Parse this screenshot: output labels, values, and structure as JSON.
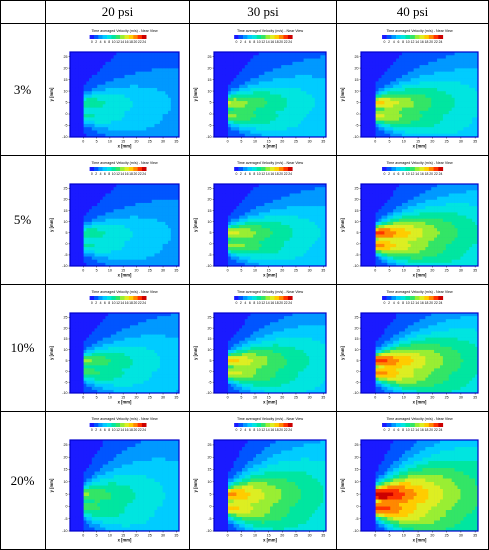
{
  "header": {
    "columns": [
      "20 psi",
      "30 psi",
      "40 psi"
    ]
  },
  "rows": [
    "3%",
    "5%",
    "10%",
    "20%"
  ],
  "panel_text": {
    "title": "Time averaged Velocity (m/s) - Near View",
    "xlabel": "x [mm]",
    "ylabel": "y [mm]"
  },
  "colorbar": {
    "ticks": [
      "0",
      "2",
      "4",
      "6",
      "8",
      "10",
      "12",
      "14",
      "16",
      "18",
      "20",
      "22",
      "24"
    ],
    "colors": [
      "#1a1aff",
      "#0055ff",
      "#0099ff",
      "#00ccff",
      "#00e5e0",
      "#00e6a0",
      "#33e566",
      "#99ee33",
      "#ddee22",
      "#ffcc00",
      "#ff8800",
      "#ff3300",
      "#cc0000"
    ]
  },
  "axes": {
    "xticks": [
      "0",
      "5",
      "10",
      "15",
      "20",
      "25",
      "30",
      "35"
    ],
    "yticks": [
      "25",
      "20",
      "15",
      "10",
      "5",
      "0",
      "-5",
      "-10"
    ]
  },
  "chart_data": {
    "type": "heatmap",
    "rows": [
      "3%",
      "5%",
      "10%",
      "20%"
    ],
    "columns": [
      "20 psi",
      "30 psi",
      "40 psi"
    ],
    "xlim": [
      -5,
      36
    ],
    "ylim": [
      -10,
      27
    ],
    "value_range": [
      0,
      24
    ],
    "panels": [
      {
        "row": "3%",
        "column": "20 psi",
        "jet_peak": 6,
        "spread": 1.0
      },
      {
        "row": "3%",
        "column": "30 psi",
        "jet_peak": 10,
        "spread": 1.1
      },
      {
        "row": "3%",
        "column": "40 psi",
        "jet_peak": 12,
        "spread": 1.2
      },
      {
        "row": "5%",
        "column": "20 psi",
        "jet_peak": 6,
        "spread": 1.0
      },
      {
        "row": "5%",
        "column": "30 psi",
        "jet_peak": 11,
        "spread": 1.1
      },
      {
        "row": "5%",
        "column": "40 psi",
        "jet_peak": 16,
        "spread": 1.3
      },
      {
        "row": "10%",
        "column": "20 psi",
        "jet_peak": 8,
        "spread": 1.2
      },
      {
        "row": "10%",
        "column": "30 psi",
        "jet_peak": 12,
        "spread": 1.3
      },
      {
        "row": "10%",
        "column": "40 psi",
        "jet_peak": 16,
        "spread": 1.4
      },
      {
        "row": "20%",
        "column": "20 psi",
        "jet_peak": 7,
        "spread": 1.4
      },
      {
        "row": "20%",
        "column": "30 psi",
        "jet_peak": 13,
        "spread": 1.5
      },
      {
        "row": "20%",
        "column": "40 psi",
        "jet_peak": 18,
        "spread": 1.6
      }
    ]
  }
}
